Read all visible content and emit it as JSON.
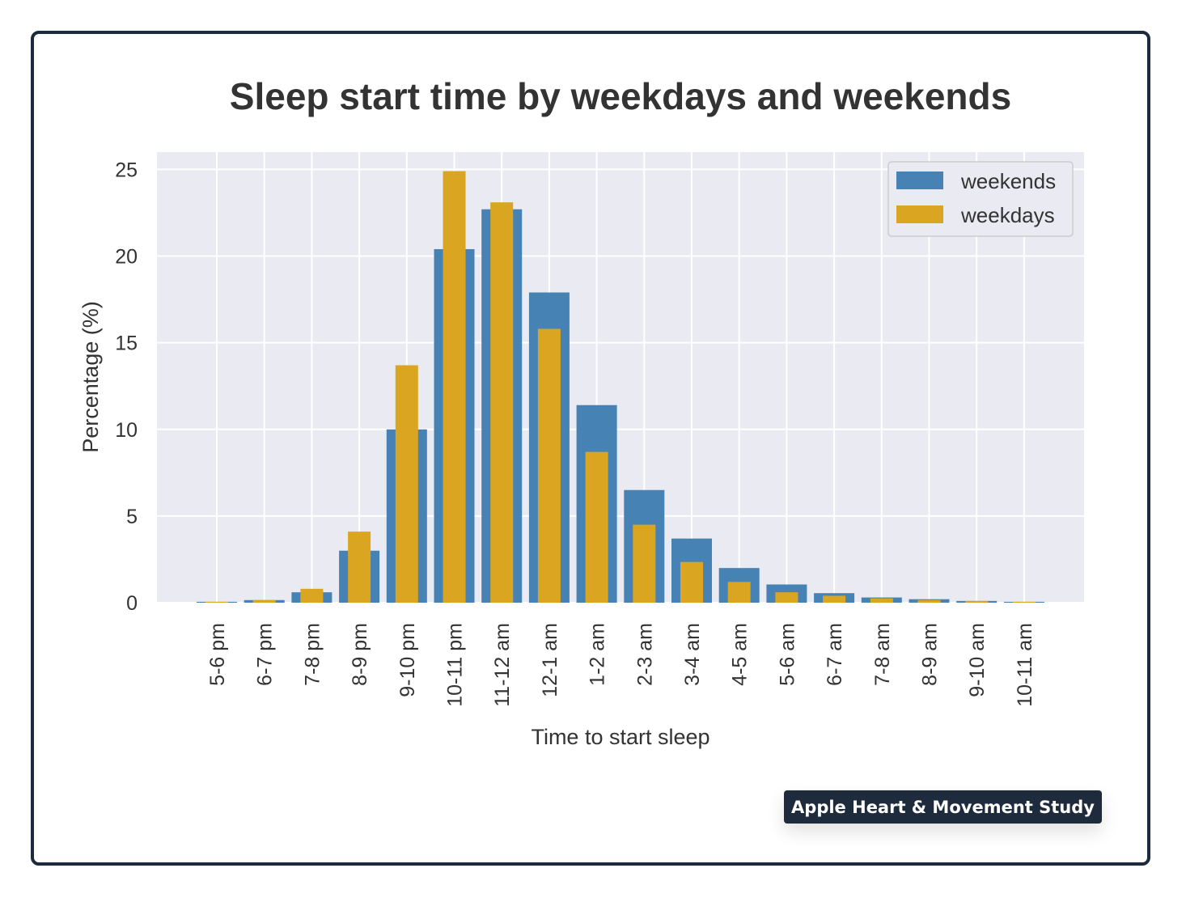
{
  "chart_data": {
    "type": "bar",
    "title": "Sleep start time by weekdays and weekends",
    "xlabel": "Time to start sleep",
    "ylabel": "Percentage (%)",
    "categories": [
      "5-6 pm",
      "6-7 pm",
      "7-8 pm",
      "8-9 pm",
      "9-10 pm",
      "10-11 pm",
      "11-12 am",
      "12-1 am",
      "1-2 am",
      "2-3 am",
      "3-4 am",
      "4-5 am",
      "5-6 am",
      "6-7 am",
      "7-8 am",
      "8-9 am",
      "9-10 am",
      "10-11 am"
    ],
    "series": [
      {
        "name": "weekends",
        "color": "#4682b4",
        "values": [
          0.05,
          0.15,
          0.6,
          3.0,
          10.0,
          20.4,
          22.7,
          17.9,
          11.4,
          6.5,
          3.7,
          2.0,
          1.05,
          0.55,
          0.3,
          0.2,
          0.1,
          0.05
        ]
      },
      {
        "name": "weekdays",
        "color": "#daa520",
        "values": [
          0.05,
          0.15,
          0.8,
          4.1,
          13.7,
          24.9,
          23.1,
          15.8,
          8.7,
          4.5,
          2.35,
          1.2,
          0.6,
          0.4,
          0.25,
          0.15,
          0.1,
          0.05
        ]
      }
    ],
    "ylim": [
      0,
      26
    ],
    "yticks": [
      "0",
      "5",
      "10",
      "15",
      "20",
      "25"
    ],
    "grid": true,
    "legend": "top-right",
    "background_color": "#eaeaf2"
  },
  "badge": {
    "label": "Apple Heart & Movement Study"
  }
}
